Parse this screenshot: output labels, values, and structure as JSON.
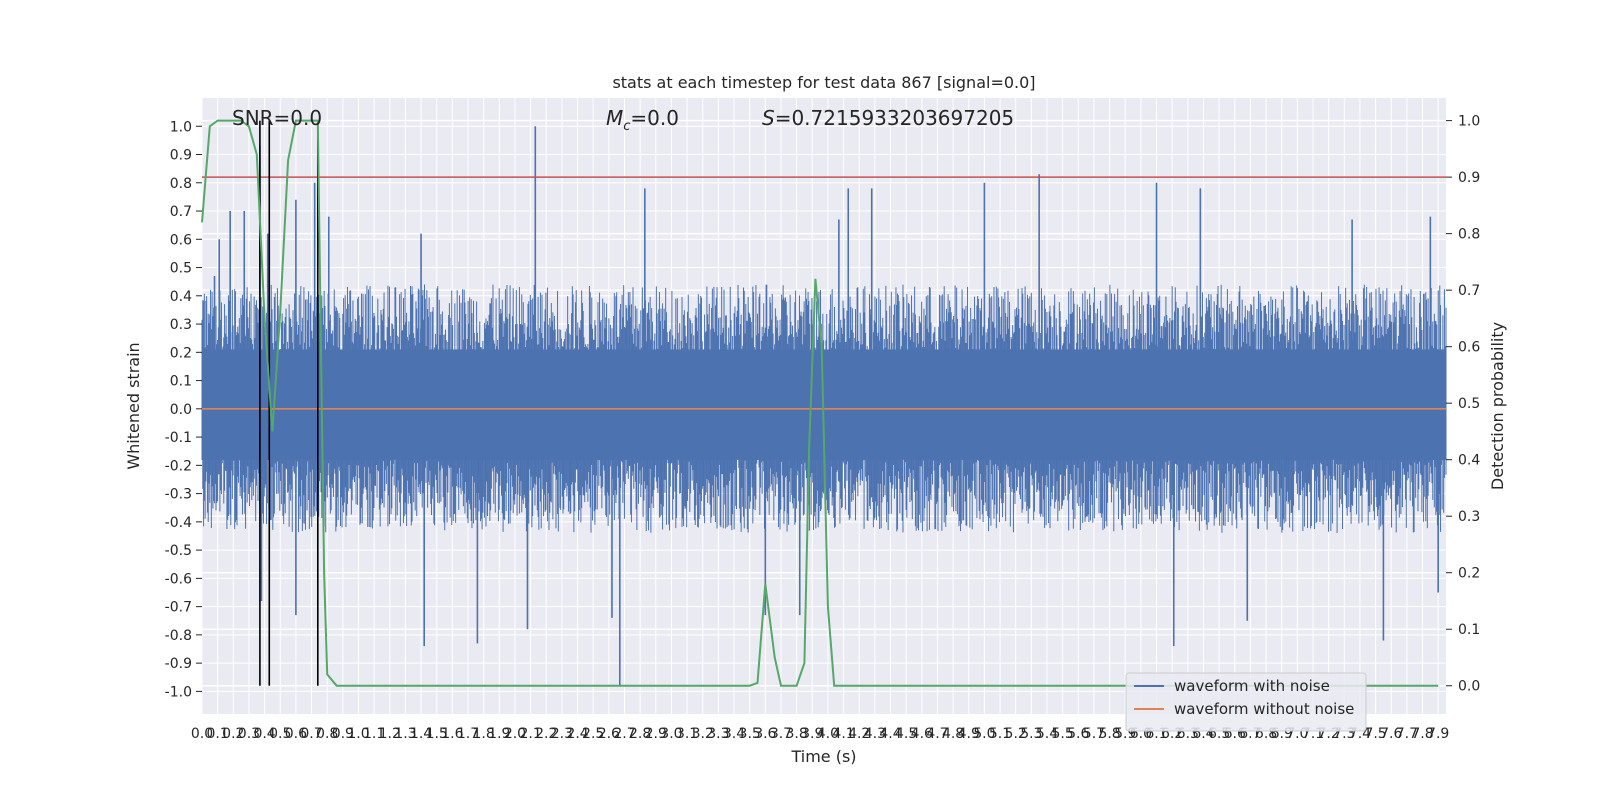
{
  "chart_data": {
    "type": "line",
    "title": "stats at each timestep for test data 867 [signal=0.0]",
    "xlabel": "Time (s)",
    "ylabel_left": "Whitened strain",
    "ylabel_right": "Detection probability",
    "annotations": {
      "snr": "SNR=0.0",
      "mc_symbol": "M",
      "mc_sub": "c",
      "mc_value": "=0.0",
      "s_symbol": "S",
      "s_value": "=0.7215933203697205"
    },
    "xlim": [
      0,
      7.95
    ],
    "ylim_left": [
      -1.08,
      1.1
    ],
    "ylim_right": [
      -0.05,
      1.04
    ],
    "x_ticks": [
      0.0,
      0.1,
      0.2,
      0.3,
      0.4,
      0.5,
      0.6,
      0.7,
      0.8,
      0.9,
      1.0,
      1.1,
      1.2,
      1.3,
      1.4,
      1.5,
      1.6,
      1.7,
      1.8,
      1.9,
      2.0,
      2.1,
      2.2,
      2.3,
      2.4,
      2.5,
      2.6,
      2.7,
      2.8,
      2.9,
      3.0,
      3.1,
      3.2,
      3.3,
      3.4,
      3.5,
      3.6,
      3.7,
      3.8,
      3.9,
      4.0,
      4.1,
      4.2,
      4.3,
      4.4,
      4.5,
      4.6,
      4.7,
      4.8,
      4.9,
      5.0,
      5.1,
      5.2,
      5.3,
      5.4,
      5.5,
      5.6,
      5.7,
      5.8,
      5.9,
      6.0,
      6.1,
      6.2,
      6.3,
      6.4,
      6.5,
      6.6,
      6.7,
      6.8,
      6.9,
      7.0,
      7.1,
      7.2,
      7.3,
      7.4,
      7.5,
      7.6,
      7.7,
      7.8,
      7.9
    ],
    "y_ticks_left": [
      1.0,
      0.9,
      0.8,
      0.7,
      0.6,
      0.5,
      0.4,
      0.3,
      0.2,
      0.1,
      0.0,
      -0.1,
      -0.2,
      -0.3,
      -0.4,
      -0.5,
      -0.6,
      -0.7,
      -0.8,
      -0.9,
      -1.0
    ],
    "y_ticks_right": [
      1.0,
      0.9,
      0.8,
      0.7,
      0.6,
      0.5,
      0.4,
      0.3,
      0.2,
      0.1,
      0.0
    ],
    "threshold": 0.9,
    "vertical_markers": [
      0.37,
      0.43,
      0.74
    ],
    "noise_envelope": {
      "typical_abs": 0.4,
      "spikes": [
        {
          "x": 0.08,
          "y": 0.47
        },
        {
          "x": 0.11,
          "y": 0.6
        },
        {
          "x": 0.18,
          "y": 0.7
        },
        {
          "x": 0.27,
          "y": 0.7
        },
        {
          "x": 0.37,
          "y": 0.93
        },
        {
          "x": 0.42,
          "y": 0.62
        },
        {
          "x": 0.6,
          "y": 0.74
        },
        {
          "x": 0.72,
          "y": 0.8
        },
        {
          "x": 0.81,
          "y": 0.68
        },
        {
          "x": 1.4,
          "y": 0.62
        },
        {
          "x": 2.13,
          "y": 1.0
        },
        {
          "x": 2.83,
          "y": 0.78
        },
        {
          "x": 4.07,
          "y": 0.67
        },
        {
          "x": 4.13,
          "y": 0.78
        },
        {
          "x": 4.28,
          "y": 0.78
        },
        {
          "x": 5.0,
          "y": 0.8
        },
        {
          "x": 5.35,
          "y": 0.83
        },
        {
          "x": 6.1,
          "y": 0.8
        },
        {
          "x": 6.38,
          "y": 0.78
        },
        {
          "x": 7.35,
          "y": 0.67
        },
        {
          "x": 7.85,
          "y": 0.68
        },
        {
          "x": 0.38,
          "y": -0.68
        },
        {
          "x": 0.6,
          "y": -0.73
        },
        {
          "x": 1.42,
          "y": -0.84
        },
        {
          "x": 1.76,
          "y": -0.83
        },
        {
          "x": 2.08,
          "y": -0.78
        },
        {
          "x": 2.62,
          "y": -0.74
        },
        {
          "x": 2.67,
          "y": -0.98
        },
        {
          "x": 3.6,
          "y": -0.73
        },
        {
          "x": 3.82,
          "y": -0.73
        },
        {
          "x": 6.21,
          "y": -0.84
        },
        {
          "x": 6.68,
          "y": -0.75
        },
        {
          "x": 7.55,
          "y": -0.82
        },
        {
          "x": 7.9,
          "y": -0.65
        }
      ]
    },
    "series": [
      {
        "name": "waveform with noise",
        "color": "#4c72b0",
        "style": "dense noise, amplitude about ±0.4 with spikes"
      },
      {
        "name": "waveform without noise",
        "color": "#dd8452",
        "x": [
          0,
          7.95
        ],
        "y": [
          0.0,
          0.0
        ]
      },
      {
        "color": "#55a868",
        "axis": "right",
        "x": [
          0.0,
          0.05,
          0.1,
          0.15,
          0.2,
          0.25,
          0.3,
          0.35,
          0.4,
          0.45,
          0.5,
          0.55,
          0.6,
          0.65,
          0.7,
          0.74,
          0.78,
          0.8,
          0.86,
          0.9,
          1.0,
          1.5,
          2.0,
          2.5,
          3.0,
          3.3,
          3.5,
          3.55,
          3.6,
          3.66,
          3.7,
          3.75,
          3.8,
          3.85,
          3.88,
          3.92,
          3.96,
          4.0,
          4.04,
          4.08,
          4.2,
          4.5,
          5.0,
          6.0,
          7.0,
          7.9
        ],
        "y": [
          0.82,
          0.99,
          1.0,
          1.0,
          1.0,
          1.0,
          0.99,
          0.94,
          0.65,
          0.45,
          0.66,
          0.93,
          1.0,
          1.0,
          1.0,
          1.0,
          0.2,
          0.02,
          0.0,
          0.0,
          0.0,
          0.0,
          0.0,
          0.0,
          0.0,
          0.0,
          0.0,
          0.005,
          0.18,
          0.05,
          0.0,
          0.0,
          0.0,
          0.04,
          0.42,
          0.72,
          0.6,
          0.14,
          0.0,
          0.0,
          0.0,
          0.0,
          0.0,
          0.0,
          0.0,
          0.0
        ]
      }
    ],
    "threshold_color": "#c44e52",
    "marker_color": "#000000",
    "background": "#eaeaf2",
    "grid": true,
    "legend_position": "lower right"
  }
}
